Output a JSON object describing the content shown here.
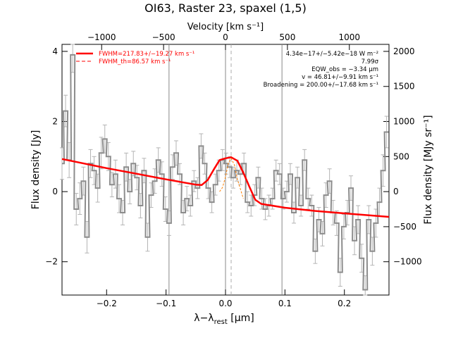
{
  "chart_data": {
    "type": "line",
    "title": "OI63, Raster 23, spaxel (1,5)",
    "xlabel": "λ−λ",
    "xlabel_sub": "rest",
    "xlabel_unit": " [μm]",
    "ylabel": "Flux density [Jy]",
    "ylabel_right": "Flux density [MJy sr⁻¹]",
    "xlabel_top": "Velocity [km s⁻¹]",
    "xlim": [
      -0.275,
      0.275
    ],
    "ylim": [
      -2.95,
      4.2
    ],
    "xticks": [
      -0.2,
      -0.1,
      0.0,
      0.1,
      0.2
    ],
    "xtick_labels": [
      "−0.2",
      "−0.1",
      "0.0",
      "0.1",
      "0.2"
    ],
    "yticks": [
      -2,
      0,
      2,
      4
    ],
    "ytick_labels": [
      "−2",
      "0",
      "2",
      "4"
    ],
    "top_ticks_kms": [
      -1000,
      -500,
      0,
      500,
      1000
    ],
    "top_tick_labels": [
      "−1000",
      "−500",
      "0",
      "500",
      "1000"
    ],
    "right_ticks_mjysr": [
      -1000,
      -500,
      0,
      500,
      1000,
      1500,
      2000
    ],
    "right_tick_labels": [
      "−1000",
      "−500",
      "0",
      "500",
      "1000",
      "1500",
      "2000"
    ],
    "right_axis_scale_mjysr_per_jy": 500,
    "top_axis_kms_per_um": 4800,
    "vertical_lines_um": [
      -0.095,
      0.0,
      0.095
    ],
    "centroid_um": 0.0095,
    "legend": [
      "FWHM=217.83+/−19.27 km s⁻¹",
      "FWHM_th=86.57 km s⁻¹"
    ],
    "annotations": [
      "4.34e−17+/−5.42e−18 W m⁻²",
      "7.99σ",
      "EQW_obs = −3.34 μm",
      "v = 46.81+/−9.91 km s⁻¹",
      "Broadening = 200.00+/−17.68 km s⁻¹"
    ],
    "colors": {
      "data": "#8c8c8c",
      "errorbar": "#b4b4b4",
      "fit": "#ff0000",
      "thermal": "#ff7f00",
      "vline": "#888888"
    },
    "series": [
      {
        "name": "",
        "x": [
          -0.275,
          -0.269,
          -0.263,
          -0.257,
          -0.251,
          -0.245,
          -0.239,
          -0.233,
          -0.227,
          -0.221,
          -0.215,
          -0.209,
          -0.203,
          -0.197,
          -0.191,
          -0.185,
          -0.179,
          -0.173,
          -0.167,
          -0.161,
          -0.155,
          -0.149,
          -0.143,
          -0.137,
          -0.131,
          -0.125,
          -0.119,
          -0.113,
          -0.107,
          -0.101,
          -0.095,
          -0.089,
          -0.083,
          -0.077,
          -0.071,
          -0.065,
          -0.059,
          -0.053,
          -0.047,
          -0.041,
          -0.035,
          -0.029,
          -0.023,
          -0.017,
          -0.011,
          -0.005,
          0.001,
          0.007,
          0.013,
          0.019,
          0.025,
          0.031,
          0.037,
          0.043,
          0.049,
          0.055,
          0.061,
          0.067,
          0.073,
          0.079,
          0.085,
          0.091,
          0.097,
          0.103,
          0.109,
          0.115,
          0.121,
          0.127,
          0.133,
          0.139,
          0.145,
          0.151,
          0.157,
          0.163,
          0.169,
          0.175,
          0.181,
          0.187,
          0.193,
          0.199,
          0.205,
          0.211,
          0.217,
          0.223,
          0.229,
          0.235,
          0.241,
          0.247,
          0.253,
          0.259,
          0.265,
          0.271
        ],
        "values": [
          0.8,
          2.3,
          0.9,
          3.9,
          -0.5,
          -0.2,
          0.3,
          -1.3,
          0.8,
          0.6,
          0.1,
          1.1,
          1.5,
          1.0,
          0.2,
          0.5,
          -0.2,
          -0.6,
          0.7,
          0.0,
          0.8,
          0.4,
          -0.4,
          0.6,
          -1.3,
          -0.1,
          0.3,
          0.9,
          0.5,
          -0.5,
          -0.9,
          0.7,
          1.1,
          0.5,
          -0.6,
          -0.2,
          -0.4,
          0.3,
          0.1,
          1.3,
          0.8,
          0.1,
          -0.3,
          0.2,
          0.6,
          0.9,
          0.8,
          0.7,
          0.4,
          0.6,
          0.5,
          0.8,
          -0.3,
          -0.4,
          -0.1,
          0.4,
          -0.2,
          -0.5,
          -0.4,
          -0.2,
          0.6,
          0.5,
          -0.2,
          0.0,
          0.5,
          -0.6,
          0.4,
          -0.4,
          0.9,
          -0.2,
          -0.4,
          -1.7,
          -0.8,
          -1.2,
          -0.1,
          0.3,
          -0.6,
          -0.9,
          -2.3,
          -1.0,
          -0.6,
          0.1,
          -1.4,
          -0.8,
          -1.9,
          -2.8,
          -0.8,
          -1.7,
          -0.9,
          -0.3,
          0.6,
          1.7
        ],
        "errors": [
          0.45,
          0.45,
          0.5,
          0.5,
          0.45,
          0.45,
          0.4,
          0.45,
          0.4,
          0.4,
          0.4,
          0.45,
          0.4,
          0.4,
          0.35,
          0.4,
          0.4,
          0.35,
          0.4,
          0.35,
          0.35,
          0.35,
          0.35,
          0.35,
          0.4,
          0.35,
          0.35,
          0.35,
          0.35,
          0.35,
          0.35,
          0.35,
          0.35,
          0.3,
          0.35,
          0.35,
          0.3,
          0.3,
          0.3,
          0.35,
          0.3,
          0.3,
          0.3,
          0.3,
          0.3,
          0.3,
          0.3,
          0.3,
          0.3,
          0.3,
          0.3,
          0.3,
          0.3,
          0.3,
          0.3,
          0.3,
          0.3,
          0.3,
          0.3,
          0.3,
          0.3,
          0.3,
          0.3,
          0.3,
          0.3,
          0.3,
          0.3,
          0.3,
          0.3,
          0.3,
          0.3,
          0.35,
          0.35,
          0.35,
          0.35,
          0.35,
          0.35,
          0.35,
          0.4,
          0.35,
          0.35,
          0.35,
          0.4,
          0.4,
          0.4,
          0.4,
          0.4,
          0.4,
          0.4,
          0.4,
          0.45,
          0.45
        ]
      },
      {
        "name": "FWHM=217.83+/−19.27 km s⁻¹",
        "x": [
          -0.275,
          -0.2,
          -0.15,
          -0.1,
          -0.05,
          -0.04,
          -0.03,
          -0.02,
          -0.01,
          0.0,
          0.0095,
          0.02,
          0.03,
          0.04,
          0.05,
          0.06,
          0.1,
          0.15,
          0.2,
          0.275
        ],
        "values": [
          0.93,
          0.67,
          0.51,
          0.35,
          0.2,
          0.19,
          0.33,
          0.62,
          0.9,
          0.95,
          0.98,
          0.88,
          0.54,
          0.15,
          -0.23,
          -0.35,
          -0.46,
          -0.55,
          -0.62,
          -0.72
        ]
      },
      {
        "name": "FWHM_th=86.57 km s⁻¹",
        "x": [
          -0.01,
          -0.005,
          0.0,
          0.005,
          0.0095,
          0.015,
          0.02,
          0.025,
          0.03
        ],
        "values": [
          0.0,
          0.12,
          0.42,
          0.82,
          0.95,
          0.76,
          0.35,
          0.08,
          -0.2
        ]
      }
    ]
  }
}
